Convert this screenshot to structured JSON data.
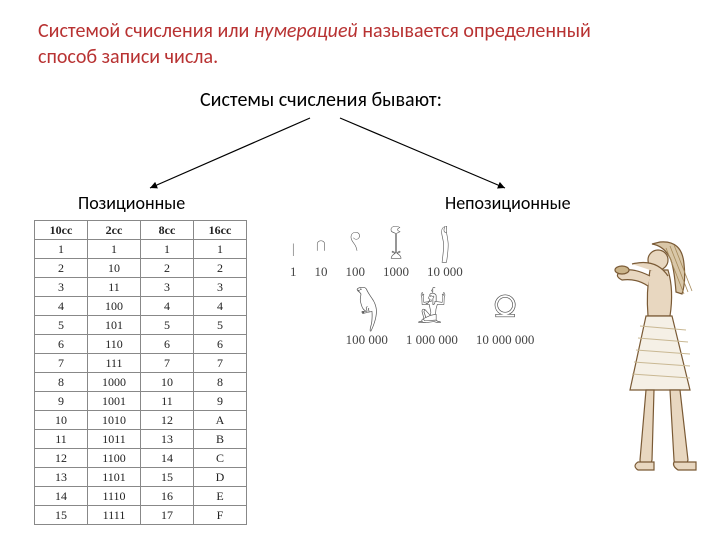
{
  "title": {
    "prefix": "Системой счисления или ",
    "italic": "нумерацией",
    "suffix": " называется определенный способ записи числа.",
    "color": "#b83232",
    "fontsize": 20
  },
  "subtitle": "Системы счисления бывают:",
  "branches": {
    "left_label": "Позиционные",
    "right_label": "Непозиционные",
    "arrow_color": "#000000"
  },
  "table": {
    "columns": [
      "10cc",
      "2cc",
      "8cc",
      "16cc"
    ],
    "rows": [
      [
        "1",
        "1",
        "1",
        "1"
      ],
      [
        "2",
        "10",
        "2",
        "2"
      ],
      [
        "3",
        "11",
        "3",
        "3"
      ],
      [
        "4",
        "100",
        "4",
        "4"
      ],
      [
        "5",
        "101",
        "5",
        "5"
      ],
      [
        "6",
        "110",
        "6",
        "6"
      ],
      [
        "7",
        "111",
        "7",
        "7"
      ],
      [
        "8",
        "1000",
        "10",
        "8"
      ],
      [
        "9",
        "1001",
        "11",
        "9"
      ],
      [
        "10",
        "1010",
        "12",
        "A"
      ],
      [
        "11",
        "1011",
        "13",
        "B"
      ],
      [
        "12",
        "1100",
        "14",
        "C"
      ],
      [
        "13",
        "1101",
        "15",
        "D"
      ],
      [
        "14",
        "1110",
        "16",
        "E"
      ],
      [
        "15",
        "1111",
        "17",
        "F"
      ]
    ],
    "border_color": "#888888",
    "font_family": "Times New Roman",
    "font_size": 12
  },
  "hieroglyphs": {
    "row1": [
      {
        "glyph": "𓏺",
        "label": "1"
      },
      {
        "glyph": "𓎆",
        "label": "10"
      },
      {
        "glyph": "𓍢",
        "label": "100"
      },
      {
        "glyph": "𓆼",
        "label": "1000"
      },
      {
        "glyph": "𓂭",
        "label": "10 000"
      }
    ],
    "row2": [
      {
        "glyph": "𓆐",
        "label": "100 000"
      },
      {
        "glyph": "𓁨",
        "label": "1 000 000"
      },
      {
        "glyph": "𓍶",
        "label": "10 000 000"
      }
    ],
    "glyph_color": "#555555",
    "label_color": "#444444"
  },
  "figure": {
    "name": "egyptian-figure",
    "stroke": "#7a5a35",
    "fill": "#e8d7c0",
    "skirt_fill": "#f5f0e6"
  }
}
